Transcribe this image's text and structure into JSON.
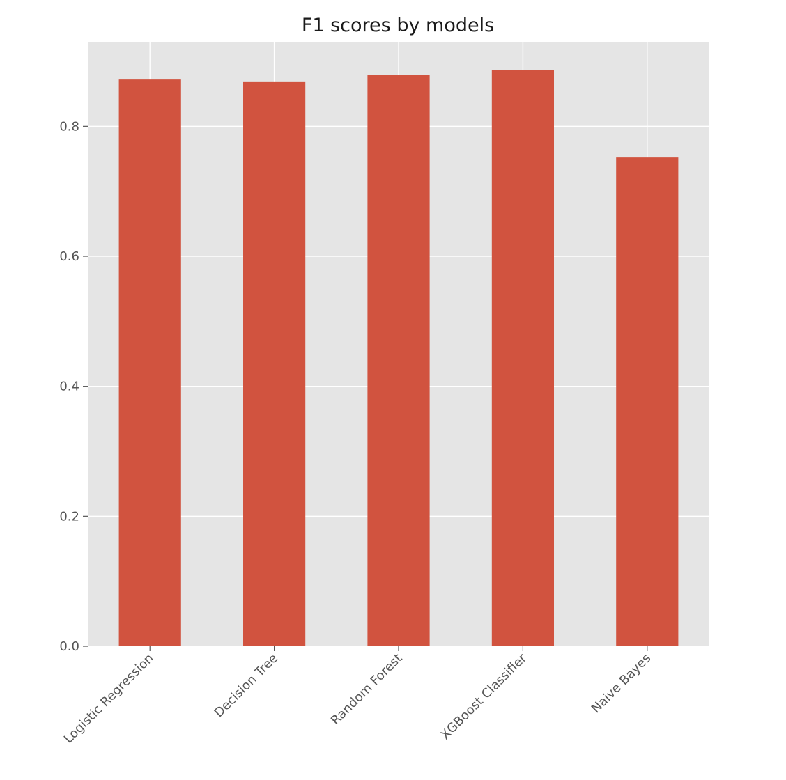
{
  "chart_data": {
    "type": "bar",
    "title": "F1 scores by models",
    "xlabel": "",
    "ylabel": "",
    "categories": [
      "Logistic Regression",
      "Decision Tree",
      "Random Forest",
      "XGBoost Classifier",
      "Naive Bayes"
    ],
    "values": [
      0.872,
      0.868,
      0.879,
      0.887,
      0.752
    ],
    "ylim": [
      0,
      0.93
    ],
    "yticks": [
      "0.0",
      "0.2",
      "0.4",
      "0.6",
      "0.8"
    ],
    "grid": true,
    "style": "ggplot",
    "colors": {
      "bar": "#d1533f",
      "plot_background": "#e5e5e5",
      "grid": "#ffffff",
      "tick_text": "#555555",
      "title_text": "#1a1a1a"
    }
  }
}
